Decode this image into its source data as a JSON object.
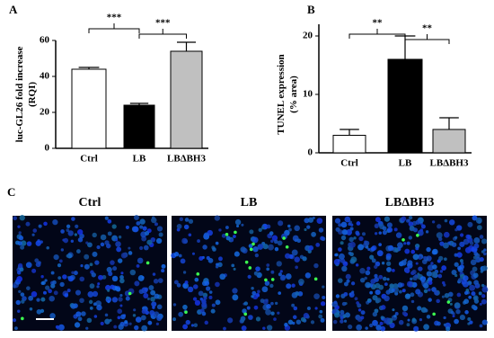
{
  "chart_data": [
    {
      "type": "bar",
      "panel_label": "A",
      "ylabel": [
        "luc-GL26 fold increase",
        "(RQI)"
      ],
      "categories": [
        "Ctrl",
        "LB",
        "LBΔBH3"
      ],
      "values": [
        44,
        24,
        54
      ],
      "errors": [
        1,
        1,
        5
      ],
      "colors": [
        "#ffffff",
        "#000000",
        "#c0c0c0"
      ],
      "ylim": [
        0,
        60
      ],
      "yticks": [
        0,
        20,
        40,
        60
      ],
      "annotations": [
        "***",
        "***"
      ]
    },
    {
      "type": "bar",
      "panel_label": "B",
      "ylabel": [
        "TUNEL expression",
        "(% area)"
      ],
      "categories": [
        "Ctrl",
        "LB",
        "LBΔBH3"
      ],
      "values": [
        3,
        16,
        4
      ],
      "errors": [
        1,
        4,
        2
      ],
      "colors": [
        "#ffffff",
        "#000000",
        "#c0c0c0"
      ],
      "ylim": [
        0,
        22
      ],
      "yticks": [
        0,
        10,
        20
      ],
      "annotations": [
        "**",
        "**"
      ]
    }
  ],
  "panel_c": {
    "panel_label": "C",
    "images": [
      "Ctrl",
      "LB",
      "LBΔBH3"
    ]
  }
}
